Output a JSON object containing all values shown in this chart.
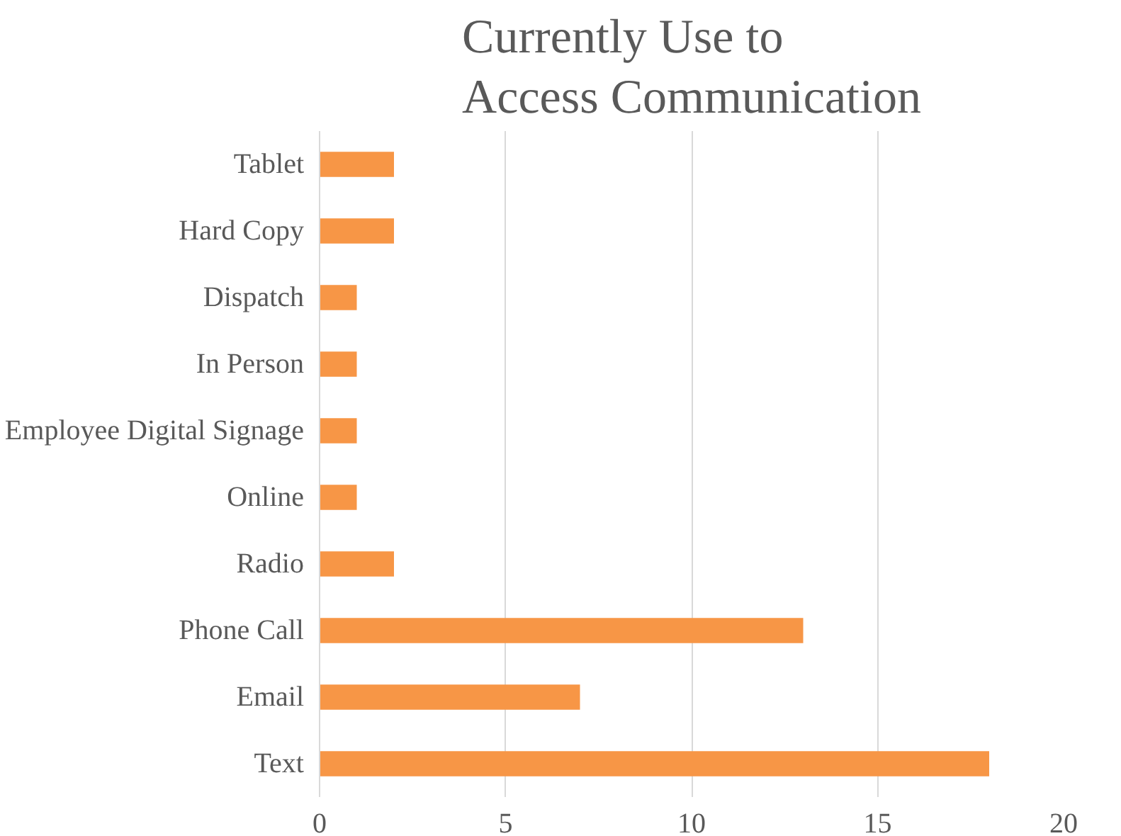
{
  "chart_data": {
    "type": "bar",
    "orientation": "horizontal",
    "title": "Currently Use to Access Communication",
    "categories": [
      "Tablet",
      "Hard Copy",
      "Dispatch",
      "In Person",
      "Employee Digital Signage",
      "Online",
      "Radio",
      "Phone Call",
      "Email",
      "Text"
    ],
    "values": [
      2,
      2,
      1,
      1,
      1,
      1,
      2,
      13,
      7,
      18
    ],
    "color": "#f79646",
    "xlim": [
      0,
      20
    ],
    "xticks": [
      0,
      5,
      10,
      15,
      20
    ],
    "grid": "x"
  }
}
